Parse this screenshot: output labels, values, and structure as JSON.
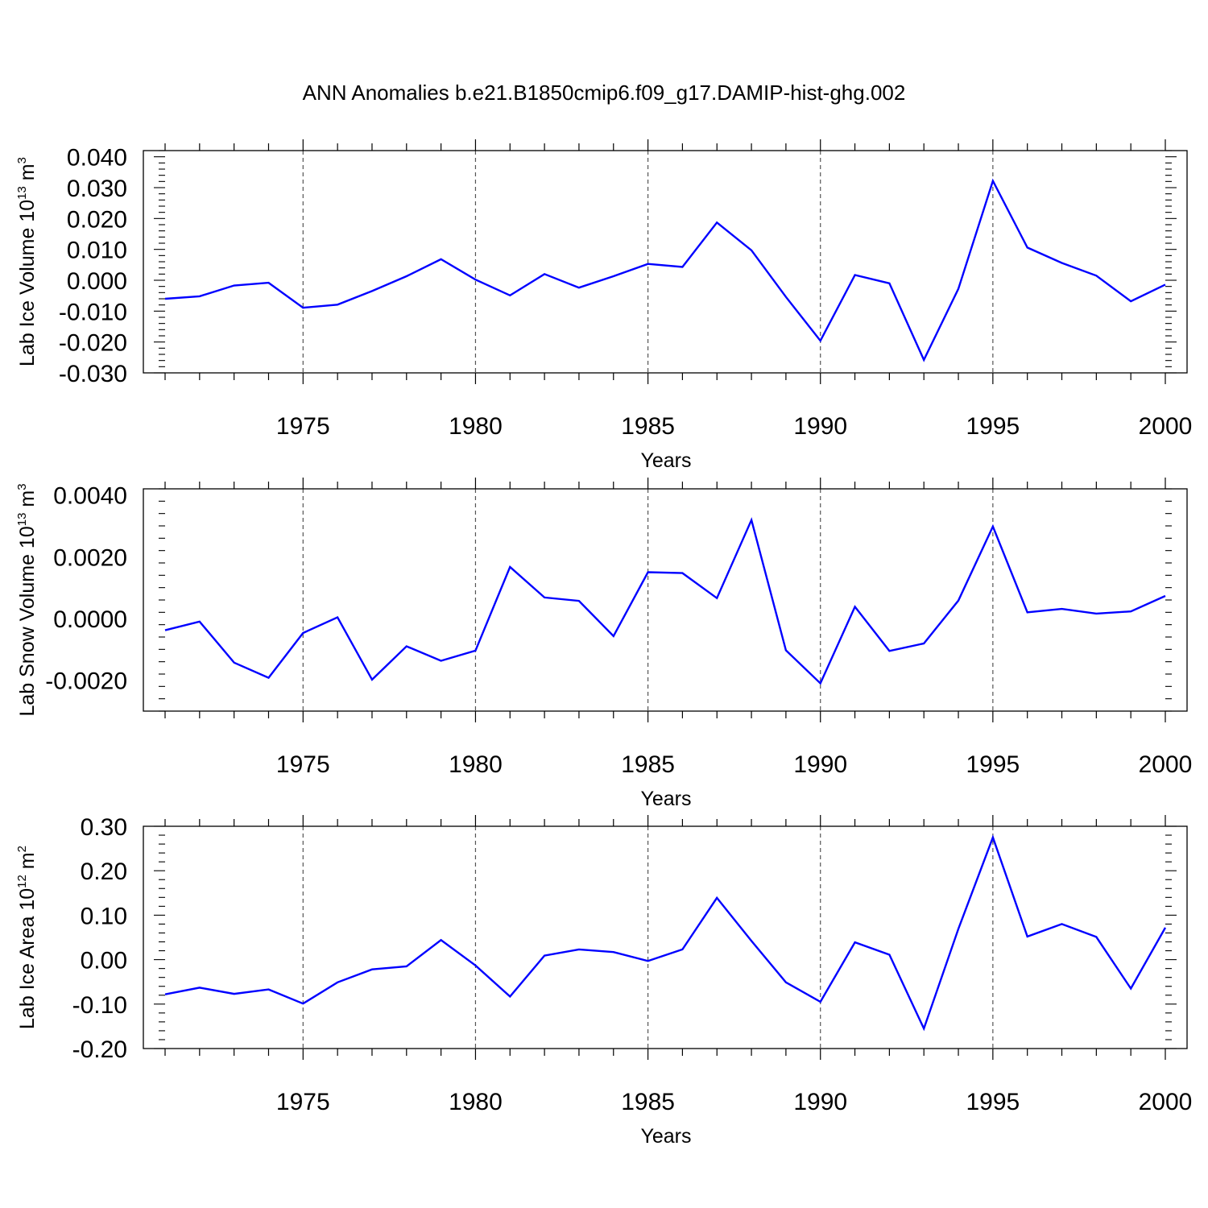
{
  "title": "ANN Anomalies b.e21.B1850cmip6.f09_g17.DAMIP-hist-ghg.002",
  "line_color": "#0000ff",
  "chart_data": [
    {
      "type": "line",
      "ylabel": "Lab Ice Volume 10",
      "ylabel_exp": "13",
      "ylabel_unit": "m",
      "ylabel_unit_exp": "3",
      "xlabel": "Years",
      "xlim": [
        1971,
        2000
      ],
      "ylim": [
        -0.03,
        0.042
      ],
      "yticks": [
        0.04,
        0.03,
        0.02,
        0.01,
        0.0,
        -0.01,
        -0.02,
        -0.03
      ],
      "ytick_labels": [
        "0.040",
        "0.030",
        "0.020",
        "0.010",
        "0.000",
        "-0.010",
        "-0.020",
        "-0.030"
      ],
      "xticks": [
        1975,
        1980,
        1985,
        1990,
        1995,
        2000
      ],
      "xtick_labels": [
        "1975",
        "1980",
        "1985",
        "1990",
        "1995",
        "2000"
      ],
      "grid_x": [
        1975,
        1980,
        1985,
        1990,
        1995
      ],
      "x": [
        1971,
        1972,
        1973,
        1974,
        1975,
        1976,
        1977,
        1978,
        1979,
        1980,
        1981,
        1982,
        1983,
        1984,
        1985,
        1986,
        1987,
        1988,
        1989,
        1990,
        1991,
        1992,
        1993,
        1994,
        1995,
        1996,
        1997,
        1998,
        1999,
        2000
      ],
      "y": [
        -0.006,
        -0.0052,
        -0.0017,
        -0.0008,
        -0.0089,
        -0.0079,
        -0.0035,
        0.0013,
        0.0068,
        0.0002,
        -0.0049,
        0.002,
        -0.0024,
        0.0013,
        0.0053,
        0.0043,
        0.0187,
        0.0097,
        -0.0054,
        -0.0196,
        0.0017,
        -0.001,
        -0.0258,
        -0.0028,
        0.0322,
        0.0106,
        0.0056,
        0.0015,
        -0.0068,
        -0.0014
      ]
    },
    {
      "type": "line",
      "ylabel": "Lab Snow Volume 10",
      "ylabel_exp": "13",
      "ylabel_unit": "m",
      "ylabel_unit_exp": "3",
      "xlabel": "Years",
      "xlim": [
        1971,
        2000
      ],
      "ylim": [
        -0.003,
        0.0042
      ],
      "yticks": [
        0.004,
        0.002,
        0.0,
        -0.002
      ],
      "ytick_labels": [
        "0.0040",
        "0.0020",
        "0.0000",
        "-0.0020"
      ],
      "xticks": [
        1975,
        1980,
        1985,
        1990,
        1995,
        2000
      ],
      "xtick_labels": [
        "1975",
        "1980",
        "1985",
        "1990",
        "1995",
        "2000"
      ],
      "grid_x": [
        1975,
        1980,
        1985,
        1990,
        1995
      ],
      "x": [
        1971,
        1972,
        1973,
        1974,
        1975,
        1976,
        1977,
        1978,
        1979,
        1980,
        1981,
        1982,
        1983,
        1984,
        1985,
        1986,
        1987,
        1988,
        1989,
        1990,
        1991,
        1992,
        1993,
        1994,
        1995,
        1996,
        1997,
        1998,
        1999,
        2000
      ],
      "y": [
        -0.00038,
        -0.0001,
        -0.00143,
        -0.00192,
        -0.00047,
        4e-05,
        -0.00198,
        -0.0009,
        -0.00137,
        -0.00104,
        0.00167,
        0.00068,
        0.00057,
        -0.00057,
        0.0015,
        0.00147,
        0.00066,
        0.00319,
        -0.00103,
        -0.0021,
        0.00038,
        -0.00105,
        -0.00081,
        0.00058,
        0.00298,
        0.0002,
        0.00031,
        0.00016,
        0.00023,
        0.00073
      ]
    },
    {
      "type": "line",
      "ylabel": "Lab Ice Area 10",
      "ylabel_exp": "12",
      "ylabel_unit": "m",
      "ylabel_unit_exp": "2",
      "xlabel": "Years",
      "xlim": [
        1971,
        2000
      ],
      "ylim": [
        -0.2,
        0.3
      ],
      "yticks": [
        0.3,
        0.2,
        0.1,
        0.0,
        -0.1,
        -0.2
      ],
      "ytick_labels": [
        "0.30",
        "0.20",
        "0.10",
        "0.00",
        "-0.10",
        "-0.20"
      ],
      "xticks": [
        1975,
        1980,
        1985,
        1990,
        1995,
        2000
      ],
      "xtick_labels": [
        "1975",
        "1980",
        "1985",
        "1990",
        "1995",
        "2000"
      ],
      "grid_x": [
        1975,
        1980,
        1985,
        1990,
        1995
      ],
      "x": [
        1971,
        1972,
        1973,
        1974,
        1975,
        1976,
        1977,
        1978,
        1979,
        1980,
        1981,
        1982,
        1983,
        1984,
        1985,
        1986,
        1987,
        1988,
        1989,
        1990,
        1991,
        1992,
        1993,
        1994,
        1995,
        1996,
        1997,
        1998,
        1999,
        2000
      ],
      "y": [
        -0.078,
        -0.063,
        -0.077,
        -0.067,
        -0.099,
        -0.051,
        -0.022,
        -0.015,
        0.044,
        -0.013,
        -0.083,
        0.009,
        0.023,
        0.017,
        -0.003,
        0.023,
        0.139,
        0.042,
        -0.051,
        -0.095,
        0.039,
        0.011,
        -0.155,
        0.069,
        0.275,
        0.052,
        0.08,
        0.051,
        -0.065,
        0.072
      ]
    }
  ]
}
